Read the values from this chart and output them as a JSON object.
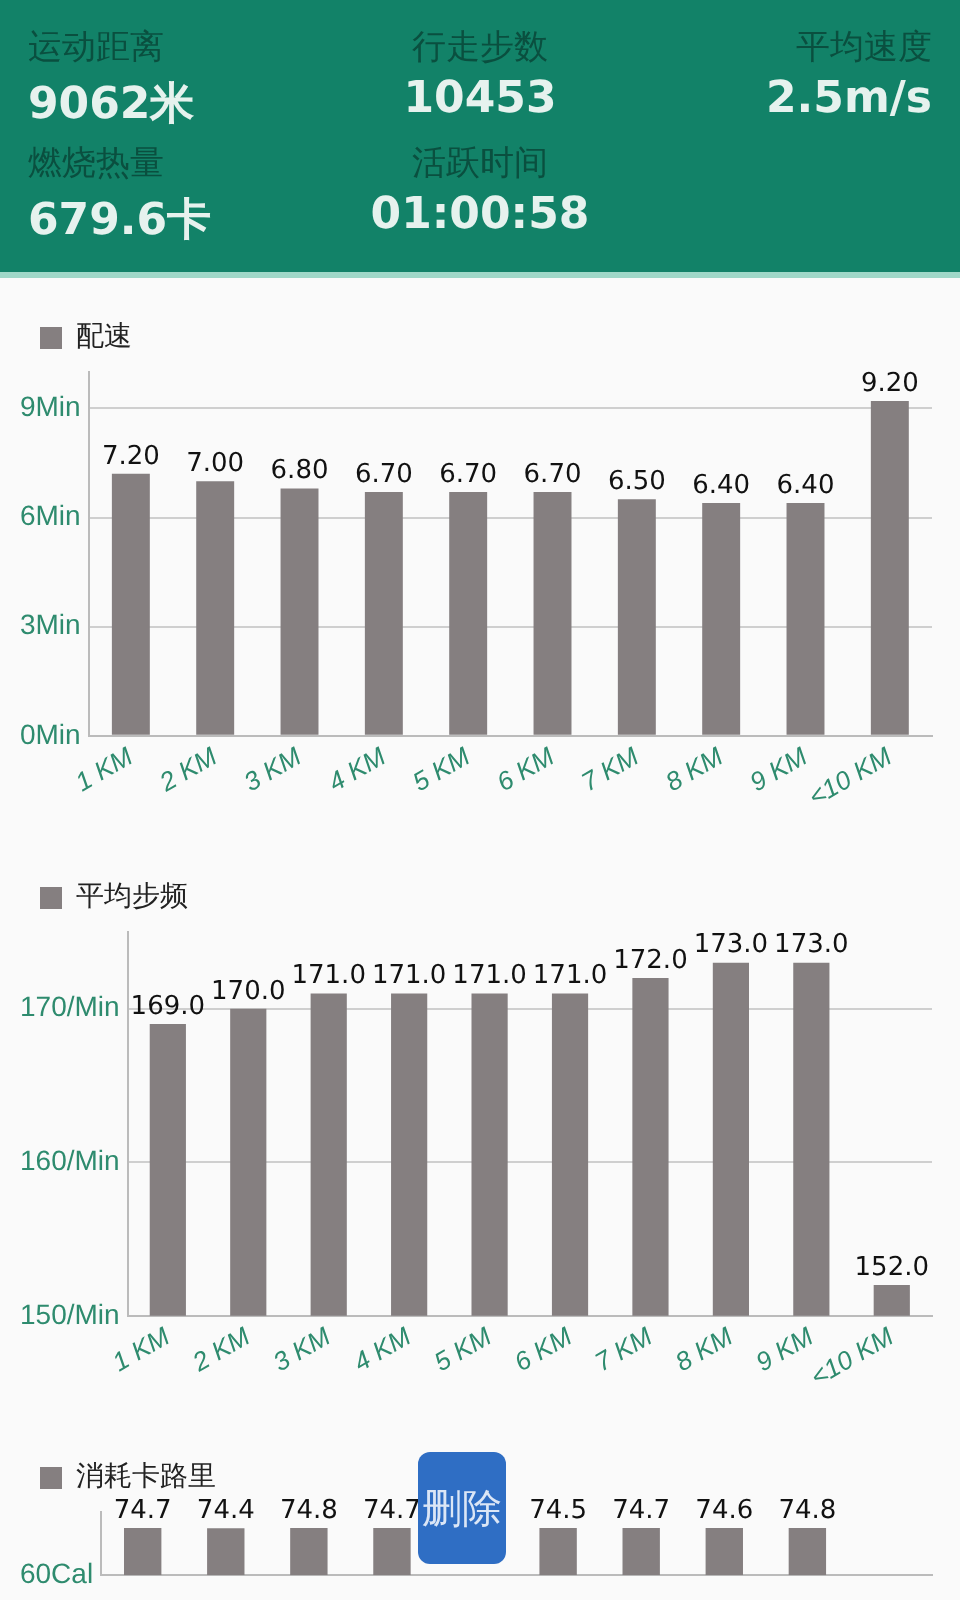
{
  "chart_data": [
    {
      "type": "other",
      "annotations": [
        "运动距离",
        "9062米",
        "行走步数",
        "10453",
        "平均速度",
        "2.5m/s",
        "燃烧热量",
        "679.6卡",
        "活跃时间",
        "01:00:58"
      ]
    },
    {
      "type": "bar",
      "categories": [
        "1 KM",
        "2 KM",
        "3 KM",
        "4 KM",
        "5 KM",
        "6 KM",
        "7 KM",
        "8 KM",
        "9 KM",
        "<10 KM"
      ],
      "series": [
        {
          "name": "配速",
          "color": "#857f80",
          "values": [
            7.2,
            7.0,
            6.8,
            6.7,
            6.7,
            6.7,
            6.5,
            6.4,
            6.4,
            9.2
          ],
          "value_labels": [
            "7.20",
            "7.00",
            "6.80",
            "6.70",
            "6.70",
            "6.70",
            "6.50",
            "6.40",
            "6.40",
            "9.20"
          ]
        }
      ],
      "ylim": [
        0,
        10
      ],
      "yticks": [
        {
          "value": 0,
          "label": "0Min"
        },
        {
          "value": 3,
          "label": "3Min"
        },
        {
          "value": 6,
          "label": "6Min"
        },
        {
          "value": 9,
          "label": "9Min"
        }
      ],
      "grid": "y",
      "legend": "top left"
    },
    {
      "type": "bar",
      "categories": [
        "1 KM",
        "2 KM",
        "3 KM",
        "4 KM",
        "5 KM",
        "6 KM",
        "7 KM",
        "8 KM",
        "9 KM",
        "<10 KM"
      ],
      "series": [
        {
          "name": "平均步频",
          "color": "#857f80",
          "values": [
            169,
            170,
            171,
            171,
            171,
            171,
            172,
            173,
            173,
            152
          ],
          "value_labels": [
            "169.0",
            "170.0",
            "171.0",
            "171.0",
            "171.0",
            "171.0",
            "172.0",
            "173.0",
            "173.0",
            "152.0"
          ]
        }
      ],
      "ylim": [
        150,
        175
      ],
      "yticks": [
        {
          "value": 150,
          "label": "150/Min"
        },
        {
          "value": 160,
          "label": "160/Min"
        },
        {
          "value": 170,
          "label": "170/Min"
        }
      ],
      "grid": "y",
      "legend": "top left"
    },
    {
      "type": "bar",
      "categories": [
        null,
        null,
        null,
        null,
        null,
        null,
        null,
        null,
        null,
        null
      ],
      "series": [
        {
          "name": "消耗卡路里",
          "color": "#857f80",
          "values": [
            74.7,
            74.4,
            74.8,
            74.7,
            null,
            74.5,
            74.7,
            74.6,
            74.8,
            null
          ],
          "value_labels": [
            "74.7",
            "74.4",
            "74.8",
            "74.7",
            null,
            "74.5",
            "74.7",
            "74.6",
            "74.8",
            null
          ]
        }
      ],
      "legend": "top left",
      "annotations": [
        "删除",
        "60Cal"
      ]
    }
  ]
}
